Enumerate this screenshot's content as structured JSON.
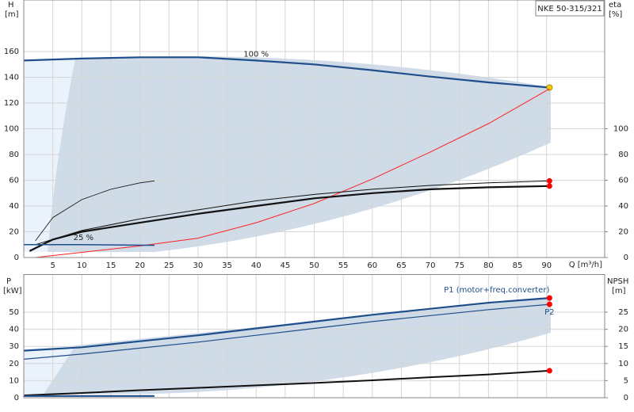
{
  "chart_data": [
    {
      "type": "line",
      "title": "NKE 50-315/321",
      "ylabel": "H",
      "yunit": "[m]",
      "y2label": "eta",
      "y2unit": "[%]",
      "xlabel": "Q [m³/h]",
      "xlim": [
        0,
        100
      ],
      "xticks": [
        5,
        10,
        15,
        20,
        25,
        30,
        35,
        40,
        45,
        50,
        55,
        60,
        65,
        70,
        75,
        80,
        85,
        90
      ],
      "ylim": [
        0,
        200
      ],
      "yticks": [
        0,
        20,
        40,
        60,
        80,
        100,
        120,
        140,
        160
      ],
      "y2lim": [
        0,
        200
      ],
      "y2ticks": [
        0,
        20,
        40,
        60,
        80,
        100
      ],
      "grid": true,
      "series": [
        {
          "name": "100 %",
          "color": "#1f4e8c",
          "width": 2.2,
          "end_marker": "#f5d000",
          "x": [
            0,
            10,
            20,
            30,
            40,
            50,
            60,
            70,
            80,
            90.5
          ],
          "values": [
            153,
            154.5,
            155.5,
            155.5,
            153,
            150,
            145.5,
            140.5,
            136,
            132
          ]
        },
        {
          "color": "#ff2020",
          "width": 1,
          "x": [
            2,
            10,
            20,
            30,
            40,
            50,
            60,
            70,
            80,
            90.5
          ],
          "values": [
            0,
            4,
            9,
            15,
            27,
            42,
            61,
            82,
            104,
            131
          ]
        },
        {
          "color": "#111111",
          "width": 1,
          "end_marker": "#ff0000",
          "x": [
            2,
            10,
            20,
            30,
            40,
            50,
            60,
            70,
            80,
            90.5
          ],
          "values": [
            10,
            21,
            30,
            37,
            44,
            49,
            53,
            56,
            58,
            59.5
          ]
        },
        {
          "color": "#111111",
          "width": 2.2,
          "end_marker": "#ff0000",
          "x": [
            1,
            5,
            10,
            20,
            30,
            40,
            50,
            60,
            70,
            80,
            90.5
          ],
          "values": [
            5,
            14,
            20,
            27,
            34,
            40,
            46,
            50,
            53,
            54.5,
            55.5
          ]
        },
        {
          "color": "#111111",
          "width": 0.8,
          "x": [
            2,
            5,
            10,
            15,
            20,
            22.5
          ],
          "values": [
            13,
            31,
            45,
            53,
            58,
            59.5
          ]
        },
        {
          "name": "25 %",
          "color": "#1f4e8c",
          "width": 1.5,
          "x": [
            0,
            10,
            22.5
          ],
          "values": [
            10,
            10,
            9.5
          ]
        }
      ]
    },
    {
      "type": "line",
      "ylabel": "P",
      "yunit": "[kW]",
      "y2label": "NPSH",
      "y2unit": "[m]",
      "xlim": [
        0,
        100
      ],
      "xticks": [
        5,
        10,
        15,
        20,
        25,
        30,
        35,
        40,
        45,
        50,
        55,
        60,
        65,
        70,
        75,
        80,
        85,
        90
      ],
      "ylim": [
        0,
        72
      ],
      "yticks": [
        0,
        10,
        20,
        30,
        40,
        50
      ],
      "y2lim": [
        0,
        36
      ],
      "y2ticks": [
        0,
        5,
        10,
        15,
        20,
        25
      ],
      "grid": true,
      "series": [
        {
          "name": "P1 (motor+freq.converter)",
          "color": "#1f4e8c",
          "width": 2.2,
          "end_marker": "#ff0000",
          "x": [
            0,
            10,
            20,
            30,
            40,
            50,
            60,
            70,
            80,
            90.5
          ],
          "values": [
            27.5,
            29.5,
            33,
            36.5,
            40.5,
            44.5,
            48.5,
            52,
            55.5,
            58.3
          ]
        },
        {
          "name": "P2",
          "color": "#1f4e8c",
          "width": 1.2,
          "end_marker": "#ff0000",
          "x": [
            0,
            10,
            20,
            30,
            40,
            50,
            60,
            70,
            80,
            90.5
          ],
          "values": [
            22.5,
            25.5,
            29,
            32.5,
            36.5,
            40.5,
            44.5,
            48,
            51.5,
            54.6
          ]
        },
        {
          "color": "#111111",
          "width": 2,
          "axis": "y2",
          "end_marker": "#ff0000",
          "x": [
            0,
            10,
            20,
            30,
            40,
            50,
            60,
            70,
            80,
            90.5
          ],
          "values": [
            0.7,
            1.4,
            2.2,
            2.9,
            3.6,
            4.3,
            5.1,
            6,
            6.8,
            7.9
          ]
        },
        {
          "color": "#1f4e8c",
          "width": 2.2,
          "x": [
            0,
            22.5
          ],
          "values": [
            1,
            1
          ]
        }
      ]
    }
  ]
}
